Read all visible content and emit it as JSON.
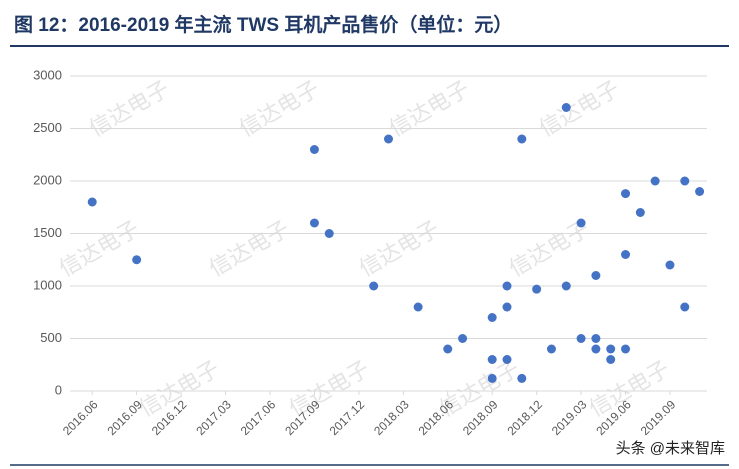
{
  "chart_data": {
    "type": "scatter",
    "title": "图 12：2016-2019 年主流 TWS 耳机产品售价（单位：元）",
    "watermark": "信达电子",
    "source": "头条 @未来智库",
    "color": "#4472c4",
    "x": [
      "2016.06",
      "2016.09",
      "2017.09",
      "2017.09",
      "2017.10",
      "2018.01",
      "2018.02",
      "2018.04",
      "2018.06",
      "2018.07",
      "2018.09",
      "2018.09",
      "2018.09",
      "2018.10",
      "2018.10",
      "2018.10",
      "2018.11",
      "2018.11",
      "2018.12",
      "2019.01",
      "2019.02",
      "2019.02",
      "2019.03",
      "2019.03",
      "2019.04",
      "2019.04",
      "2019.04",
      "2019.05",
      "2019.05",
      "2019.06",
      "2019.06",
      "2019.06",
      "2019.07",
      "2019.08",
      "2019.09",
      "2019.10",
      "2019.10",
      "2019.11"
    ],
    "values": [
      1800,
      1250,
      2300,
      1600,
      1500,
      1000,
      2400,
      800,
      400,
      500,
      700,
      300,
      120,
      1000,
      800,
      300,
      2400,
      120,
      970,
      400,
      2700,
      1000,
      1600,
      500,
      1100,
      500,
      400,
      400,
      300,
      1880,
      1300,
      400,
      1700,
      2000,
      1200,
      2000,
      800,
      1900
    ],
    "xlim": [
      "2016.05",
      "2019.11"
    ],
    "xticks": [
      "2016.06",
      "2016.09",
      "2016.12",
      "2017.03",
      "2017.06",
      "2017.09",
      "2017.12",
      "2018.03",
      "2018.06",
      "2018.09",
      "2018.12",
      "2019.03",
      "2019.06",
      "2019.09"
    ],
    "ylim": [
      0,
      3000
    ],
    "yticks": [
      0,
      500,
      1000,
      1500,
      2000,
      2500,
      3000
    ],
    "grid": true
  }
}
